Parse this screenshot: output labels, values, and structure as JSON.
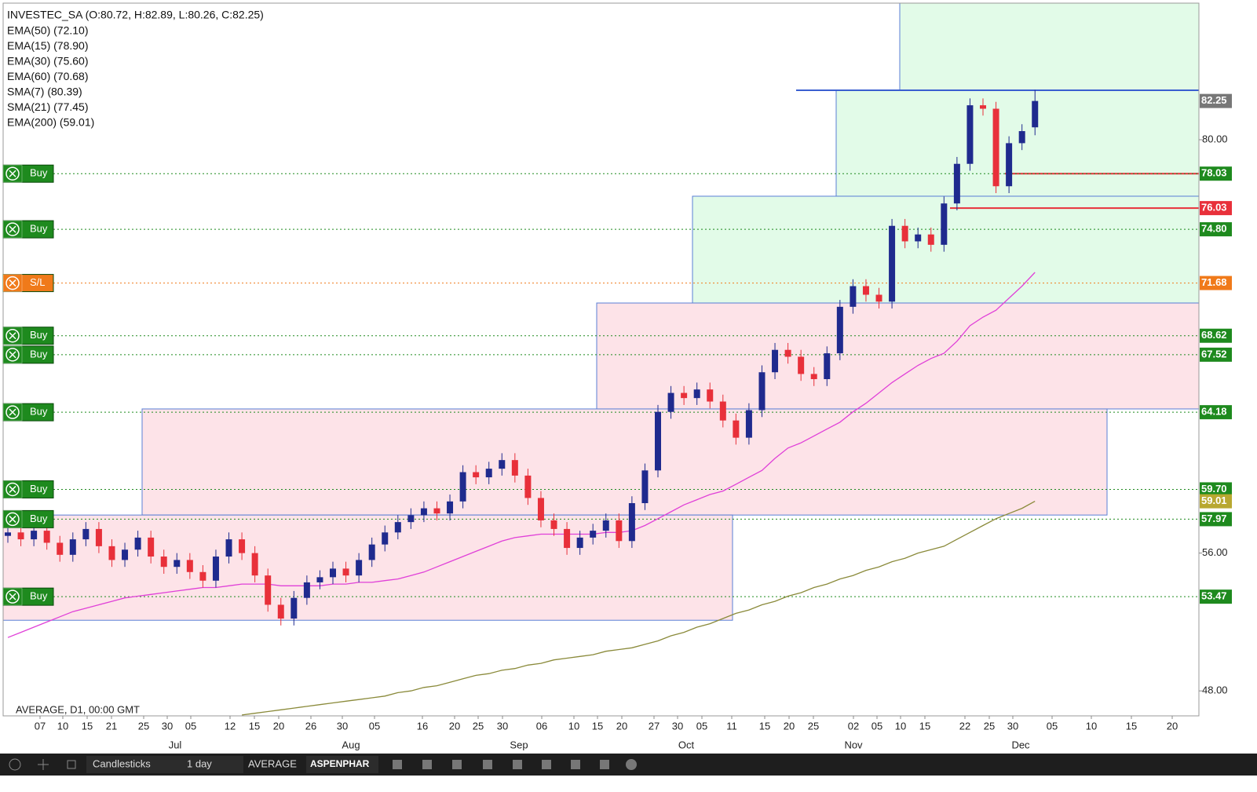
{
  "header": {
    "symbol_line": "INVESTEC_SA (O:80.72, H:82.89, L:80.26, C:82.25)",
    "indicators": [
      "EMA(50) (72.10)",
      "EMA(15) (78.90)",
      "EMA(30) (75.60)",
      "EMA(60) (70.68)",
      "SMA(7) (80.39)",
      "SMA(21) (77.45)",
      "EMA(200) (59.01)"
    ]
  },
  "chart_data": {
    "type": "candlestick",
    "open": [
      57.0,
      57.2,
      56.8,
      57.3,
      56.6,
      55.9,
      56.8,
      57.4,
      56.4,
      55.6,
      56.2,
      56.9,
      55.8,
      55.2,
      55.6,
      54.9,
      54.4,
      55.8,
      56.8,
      56.0,
      54.7,
      53.0,
      52.2,
      53.4,
      54.3,
      54.6,
      55.1,
      54.7,
      55.6,
      56.5,
      57.2,
      57.8,
      58.2,
      58.6,
      58.3,
      59.0,
      60.7,
      60.4,
      60.9,
      61.4,
      60.5,
      59.2,
      57.9,
      57.4,
      56.3,
      56.9,
      57.3,
      57.9,
      56.7,
      58.9,
      60.8,
      64.2,
      65.3,
      65.0,
      65.5,
      64.8,
      63.7,
      62.7,
      64.3,
      66.5,
      67.8,
      67.4,
      66.4,
      66.1,
      67.6,
      70.3,
      71.5,
      71.0,
      70.6,
      75.0,
      74.1,
      74.5,
      73.9,
      76.3,
      78.6,
      82.0,
      81.8,
      77.3,
      79.8,
      80.72
    ],
    "high": [
      57.6,
      57.6,
      57.7,
      57.7,
      57.0,
      57.2,
      57.8,
      57.8,
      56.8,
      56.6,
      57.3,
      57.3,
      56.2,
      56.0,
      56.0,
      55.3,
      56.2,
      57.2,
      57.2,
      56.4,
      55.1,
      53.4,
      53.8,
      54.7,
      55.0,
      55.5,
      55.5,
      56.0,
      56.9,
      57.6,
      58.2,
      58.6,
      59.0,
      59.0,
      59.4,
      61.1,
      61.1,
      61.3,
      61.8,
      61.8,
      60.9,
      59.6,
      58.3,
      57.8,
      57.3,
      57.7,
      58.3,
      58.3,
      59.3,
      61.2,
      64.6,
      65.7,
      65.7,
      65.9,
      65.9,
      65.2,
      64.1,
      64.7,
      66.9,
      68.2,
      68.2,
      67.8,
      66.8,
      68.0,
      70.7,
      71.9,
      71.9,
      71.4,
      75.4,
      75.4,
      74.9,
      74.9,
      76.7,
      79.0,
      82.4,
      82.4,
      82.2,
      80.2,
      80.9,
      82.89
    ],
    "low": [
      56.6,
      56.4,
      56.4,
      56.2,
      55.5,
      55.5,
      56.4,
      56.0,
      55.2,
      55.2,
      55.8,
      55.4,
      54.8,
      54.8,
      54.5,
      54.0,
      54.0,
      55.4,
      55.6,
      54.3,
      52.6,
      51.8,
      51.8,
      53.0,
      53.9,
      54.2,
      54.3,
      54.3,
      55.2,
      56.1,
      56.8,
      57.4,
      57.8,
      57.9,
      57.9,
      58.6,
      60.0,
      60.0,
      60.5,
      60.1,
      58.8,
      57.5,
      57.0,
      55.9,
      55.9,
      56.5,
      56.9,
      56.3,
      56.3,
      58.5,
      60.4,
      63.8,
      64.6,
      64.6,
      64.4,
      63.3,
      62.3,
      62.3,
      63.9,
      66.1,
      67.0,
      66.0,
      65.7,
      65.7,
      67.2,
      69.9,
      70.6,
      70.2,
      70.2,
      73.7,
      73.7,
      73.5,
      73.5,
      75.9,
      78.2,
      81.4,
      76.9,
      76.9,
      79.4,
      80.26
    ],
    "close": [
      57.2,
      56.8,
      57.3,
      56.6,
      55.9,
      56.8,
      57.4,
      56.4,
      55.6,
      56.2,
      56.9,
      55.8,
      55.2,
      55.6,
      54.9,
      54.4,
      55.8,
      56.8,
      56.0,
      54.7,
      53.0,
      52.2,
      53.4,
      54.3,
      54.6,
      55.1,
      54.7,
      55.6,
      56.5,
      57.2,
      57.8,
      58.2,
      58.6,
      58.3,
      59.0,
      60.7,
      60.4,
      60.9,
      61.4,
      60.5,
      59.2,
      57.9,
      57.4,
      56.3,
      56.9,
      57.3,
      57.9,
      56.7,
      58.9,
      60.8,
      64.2,
      65.3,
      65.0,
      65.5,
      64.8,
      63.7,
      62.7,
      64.3,
      66.5,
      67.8,
      67.4,
      66.4,
      66.1,
      67.6,
      70.3,
      71.5,
      71.0,
      70.6,
      75.0,
      74.1,
      74.5,
      73.9,
      76.3,
      78.6,
      82.0,
      81.8,
      77.3,
      79.8,
      80.5,
      82.25
    ],
    "up_color": "#1f2a8e",
    "down_color": "#e8303a",
    "lines": [
      {
        "color": "#e040d8",
        "values": [
          51.1,
          51.4,
          51.7,
          52.0,
          52.3,
          52.6,
          52.8,
          53.0,
          53.2,
          53.4,
          53.5,
          53.6,
          53.7,
          53.8,
          53.9,
          54.0,
          54.0,
          54.1,
          54.2,
          54.2,
          54.2,
          54.1,
          54.1,
          54.1,
          54.1,
          54.2,
          54.2,
          54.3,
          54.3,
          54.4,
          54.5,
          54.7,
          54.9,
          55.2,
          55.5,
          55.8,
          56.1,
          56.4,
          56.7,
          56.9,
          57.0,
          57.1,
          57.1,
          57.1,
          57.1,
          57.1,
          57.2,
          57.2,
          57.3,
          57.6,
          58.0,
          58.4,
          58.8,
          59.1,
          59.4,
          59.6,
          60.0,
          60.4,
          60.8,
          61.5,
          62.1,
          62.4,
          62.8,
          63.2,
          63.6,
          64.2,
          64.7,
          65.3,
          65.9,
          66.4,
          66.9,
          67.3,
          67.6,
          68.3,
          69.2,
          69.7,
          70.1,
          70.8,
          71.5,
          72.3
        ]
      },
      {
        "color": "#8a8a3a",
        "values": [
          null,
          null,
          null,
          null,
          null,
          null,
          null,
          null,
          null,
          null,
          null,
          null,
          null,
          null,
          null,
          null,
          null,
          null,
          46.6,
          46.7,
          46.8,
          46.9,
          47.0,
          47.1,
          47.2,
          47.3,
          47.4,
          47.5,
          47.6,
          47.7,
          47.9,
          48.0,
          48.2,
          48.3,
          48.5,
          48.7,
          48.9,
          49.0,
          49.2,
          49.3,
          49.5,
          49.6,
          49.8,
          49.9,
          50.0,
          50.1,
          50.3,
          50.4,
          50.5,
          50.7,
          50.9,
          51.2,
          51.4,
          51.7,
          51.9,
          52.2,
          52.5,
          52.7,
          53.0,
          53.2,
          53.5,
          53.7,
          54.0,
          54.2,
          54.5,
          54.7,
          55.0,
          55.2,
          55.5,
          55.7,
          56.0,
          56.2,
          56.4,
          56.8,
          57.2,
          57.6,
          58.0,
          58.3,
          58.6,
          59.01
        ]
      }
    ],
    "ylim": [
      46.55,
      87.93
    ],
    "yticks": [
      {
        "value": 48,
        "label": "48.00"
      },
      {
        "value": 56,
        "label": "56.00"
      },
      {
        "value": 80,
        "label": "80.00"
      }
    ],
    "x_labels": [
      "07",
      "10",
      "15",
      "21",
      "25",
      "30",
      "05",
      "12",
      "15",
      "20",
      "26",
      "30",
      "05",
      "16",
      "20",
      "25",
      "30",
      "06",
      "10",
      "15",
      "20",
      "27",
      "30",
      "05",
      "11",
      "15",
      "20",
      "25",
      "02",
      "05",
      "10",
      "15",
      "22",
      "25",
      "30",
      "05",
      "10",
      "15",
      "20"
    ],
    "month_labels": [
      "Jul",
      "Aug",
      "Sep",
      "Oct",
      "Nov",
      "Dec"
    ],
    "zones": [
      {
        "top": 87.93,
        "bottom": 82.87,
        "color": "#e2fbe8"
      },
      {
        "top": 82.87,
        "bottom": 76.72,
        "color": "#e2fbe8"
      },
      {
        "top": 76.72,
        "bottom": 70.52,
        "color": "#e2fbe8"
      },
      {
        "top": 70.52,
        "bottom": 64.37,
        "color": "#fde3e8"
      },
      {
        "top": 64.37,
        "bottom": 58.21,
        "color": "#fde3e8"
      },
      {
        "top": 58.21,
        "bottom": 52.1,
        "color": "#fde3e8"
      }
    ],
    "levels": [
      {
        "button": "Buy",
        "value": 78.03,
        "label": "78.03",
        "color": "#1e8a1e"
      },
      {
        "value": 76.03,
        "label": "76.03",
        "color": "#e8303a"
      },
      {
        "button": "Buy",
        "value": 74.8,
        "label": "74.80",
        "color": "#1e8a1e"
      },
      {
        "button": "S/L",
        "value": 71.68,
        "label": "71.68",
        "color": "#f07a1a"
      },
      {
        "button": "Buy",
        "value": 68.62,
        "label": "68.62",
        "color": "#1e8a1e"
      },
      {
        "button": "Buy",
        "value": 67.52,
        "label": "67.52",
        "color": "#1e8a1e"
      },
      {
        "button": "Buy",
        "value": 64.18,
        "label": "64.18",
        "color": "#1e8a1e"
      },
      {
        "button": "Buy",
        "value": 59.7,
        "label": "59.70",
        "color": "#1e8a1e"
      },
      {
        "value": 59.01,
        "label": "59.01",
        "color": "#b8a830"
      },
      {
        "button": "Buy",
        "value": 57.97,
        "label": "57.97",
        "color": "#1e8a1e"
      },
      {
        "button": "Buy",
        "value": 53.47,
        "label": "53.47",
        "color": "#1e8a1e"
      },
      {
        "value": 82.25,
        "label": "82.25",
        "color": "#777777"
      }
    ],
    "red_lines": [
      78.03,
      76.03
    ],
    "red_line_color": "#e8303a",
    "footer": "AVERAGE, D1, 00:00 GMT"
  },
  "toolbar": {
    "chart_type": "Candlesticks",
    "period": "1 day",
    "indicator": "AVERAGE",
    "symbol": "ASPENPHAR"
  }
}
